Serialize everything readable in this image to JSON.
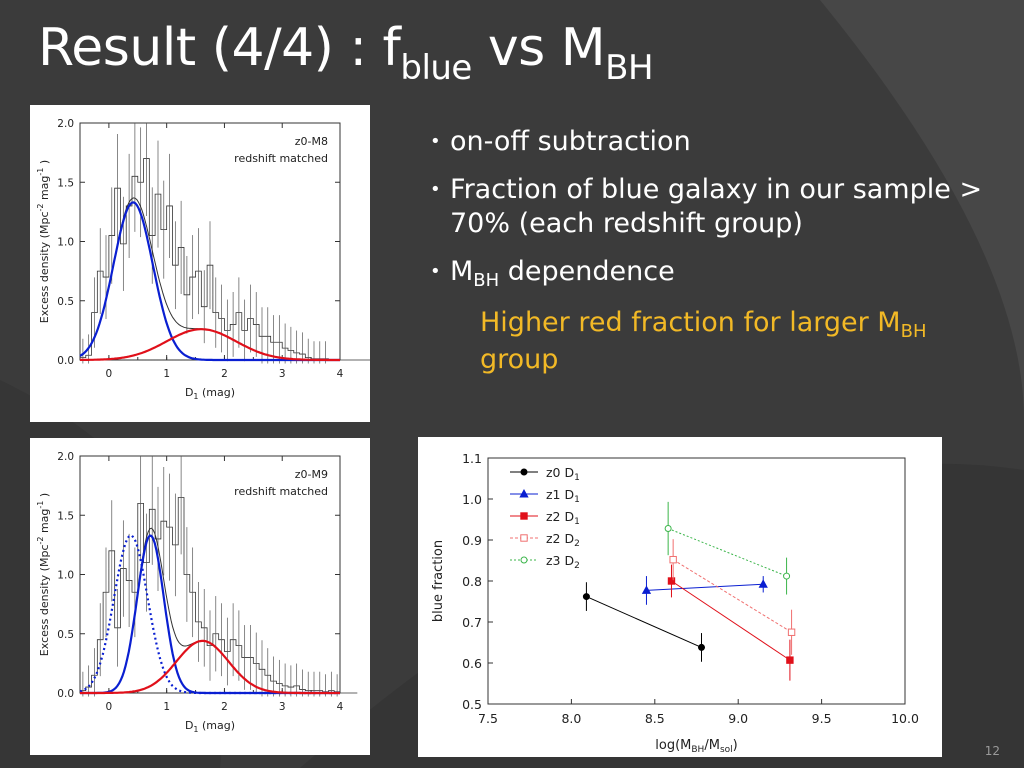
{
  "slide": {
    "title_main": "Result (4/4) : f",
    "title_sub1": "blue",
    "title_mid": " vs M",
    "title_sub2": "BH",
    "bullets": {
      "b1": "on-off subtraction",
      "b2": "Fraction of blue galaxy in our sample > 70% (each redshift group)",
      "b3_pre": "M",
      "b3_sub": "BH",
      "b3_post": " dependence",
      "note_pre": "Higher red fraction for larger M",
      "note_sub": "BH",
      "note_post": " group"
    },
    "page_number": "12"
  },
  "colors": {
    "background": "#3b3b3b",
    "note_text": "#f2b926",
    "blue": "#0a1fd1",
    "red": "#e0101a",
    "pink": "#f07070",
    "green": "#3bb54a",
    "black": "#000000"
  },
  "chart_data": [
    {
      "type": "line",
      "id": "top-left",
      "labels": [
        "z0-M8",
        "redshift matched"
      ],
      "xlabel_pre": "D",
      "xlabel_sub": "1",
      "xlabel_post": " (mag)",
      "ylabel_pre": "Excess density (Mpc",
      "ylabel_sup1": "-2",
      "ylabel_mid": " mag",
      "ylabel_sup2": "-1",
      "ylabel_post": " )",
      "xlim": [
        -0.5,
        4
      ],
      "ylim": [
        0,
        2
      ],
      "xticks": [
        0,
        1,
        2,
        3,
        4
      ],
      "yticks": [
        0.0,
        0.5,
        1.0,
        1.5,
        2.0
      ],
      "ytick_labels": [
        "0.0",
        "0.5",
        "1.0",
        "1.5",
        "2.0"
      ],
      "histogram": {
        "bin_start": -0.5,
        "bin_width": 0.1,
        "values": [
          0.02,
          0.04,
          0.4,
          0.75,
          0.7,
          1.05,
          1.45,
          0.98,
          1.3,
          1.55,
          1.5,
          1.7,
          1.05,
          1.4,
          1.1,
          1.3,
          0.8,
          0.95,
          0.55,
          0.7,
          0.75,
          0.45,
          0.8,
          0.4,
          0.35,
          0.25,
          0.3,
          0.4,
          0.25,
          0.35,
          0.3,
          0.2,
          0.2,
          0.15,
          0.15,
          0.1,
          0.08,
          0.06,
          0.05,
          0.02,
          0.01,
          0.01,
          0.01,
          0.0,
          0.0,
          0.0,
          0.0,
          0.0,
          0.0,
          0.0,
          0.0,
          0.0,
          0.0,
          0.04,
          0.0,
          0.0
        ]
      },
      "gaussians": [
        {
          "name": "blue",
          "amplitude": 1.33,
          "mean": 0.42,
          "sigma": 0.34,
          "style": "solid"
        },
        {
          "name": "red",
          "amplitude": 0.26,
          "mean": 1.6,
          "sigma": 0.6,
          "style": "solid"
        }
      ],
      "sum_line": true
    },
    {
      "type": "line",
      "id": "bottom-left",
      "labels": [
        "z0-M9",
        "redshift matched"
      ],
      "xlabel_pre": "D",
      "xlabel_sub": "1",
      "xlabel_post": " (mag)",
      "ylabel_pre": "Excess density (Mpc",
      "ylabel_sup1": "-2",
      "ylabel_mid": " mag",
      "ylabel_sup2": "-1",
      "ylabel_post": " )",
      "xlim": [
        -0.5,
        4
      ],
      "ylim": [
        0,
        2
      ],
      "xticks": [
        0,
        1,
        2,
        3,
        4
      ],
      "yticks": [
        0.0,
        0.5,
        1.0,
        1.5,
        2.0
      ],
      "ytick_labels": [
        "0.0",
        "0.5",
        "1.0",
        "1.5",
        "2.0"
      ],
      "histogram": {
        "bin_start": -0.5,
        "bin_width": 0.1,
        "values": [
          0.02,
          0.05,
          0.15,
          0.45,
          0.85,
          1.2,
          0.55,
          1.05,
          0.95,
          0.85,
          1.6,
          1.1,
          1.55,
          1.3,
          1.45,
          1.4,
          1.25,
          1.65,
          1.0,
          0.85,
          0.6,
          0.55,
          0.4,
          0.5,
          0.45,
          0.35,
          0.45,
          0.4,
          0.3,
          0.3,
          0.25,
          0.2,
          0.15,
          0.1,
          0.08,
          0.06,
          0.05,
          0.06,
          0.03,
          0.02,
          0.02,
          0.02,
          0.01,
          0.02,
          0.01,
          0.0,
          0.0,
          0.0
        ]
      },
      "gaussians": [
        {
          "name": "blue-dotted",
          "amplitude": 1.33,
          "mean": 0.38,
          "sigma": 0.29,
          "style": "dotted"
        },
        {
          "name": "blue",
          "amplitude": 1.33,
          "mean": 0.72,
          "sigma": 0.23,
          "style": "solid"
        },
        {
          "name": "red",
          "amplitude": 0.44,
          "mean": 1.62,
          "sigma": 0.45,
          "style": "solid"
        }
      ],
      "sum_line": true
    },
    {
      "type": "scatter",
      "id": "right",
      "xlabel_pre": "log(M",
      "xlabel_sub1": "BH",
      "xlabel_mid": "/M",
      "xlabel_sub2": "sol",
      "xlabel_post": ")",
      "ylabel": "blue fraction",
      "xlim": [
        7.5,
        10.0
      ],
      "ylim": [
        0.5,
        1.1
      ],
      "xticks": [
        7.5,
        8.0,
        8.5,
        9.0,
        9.5,
        10.0
      ],
      "xtick_labels": [
        "7.5",
        "8.0",
        "8.5",
        "9.0",
        "9.5",
        "10.0"
      ],
      "yticks": [
        0.5,
        0.6,
        0.7,
        0.8,
        0.9,
        1.0,
        1.1
      ],
      "ytick_labels": [
        "0.5",
        "0.6",
        "0.7",
        "0.8",
        "0.9",
        "1.0",
        "1.1"
      ],
      "legend_position": "top-left",
      "series": [
        {
          "name_pre": "z0 D",
          "name_sub": "1",
          "color": "#000000",
          "marker": "circle",
          "filled": true,
          "dash": "none",
          "points": [
            {
              "x": 8.09,
              "y": 0.762,
              "err": 0.035
            },
            {
              "x": 8.78,
              "y": 0.638,
              "err": 0.035
            }
          ]
        },
        {
          "name_pre": "z1 D",
          "name_sub": "1",
          "color": "#0a1fd1",
          "marker": "triangle",
          "filled": true,
          "dash": "none",
          "points": [
            {
              "x": 8.45,
              "y": 0.777,
              "err": 0.035
            },
            {
              "x": 9.15,
              "y": 0.792,
              "err": 0.02
            }
          ]
        },
        {
          "name_pre": "z2 D",
          "name_sub": "1",
          "color": "#e0101a",
          "marker": "square",
          "filled": true,
          "dash": "none",
          "points": [
            {
              "x": 8.6,
              "y": 0.8,
              "err": 0.04
            },
            {
              "x": 9.31,
              "y": 0.607,
              "err": 0.05
            }
          ]
        },
        {
          "name_pre": "z2 D",
          "name_sub": "2",
          "color": "#f07070",
          "marker": "square",
          "filled": false,
          "dash": "dashed",
          "points": [
            {
              "x": 8.61,
              "y": 0.852,
              "err": 0.05
            },
            {
              "x": 9.32,
              "y": 0.675,
              "err": 0.055
            }
          ]
        },
        {
          "name_pre": "z3 D",
          "name_sub": "2",
          "color": "#3bb54a",
          "marker": "circle",
          "filled": false,
          "dash": "dotted",
          "points": [
            {
              "x": 8.58,
              "y": 0.928,
              "err": 0.065
            },
            {
              "x": 9.29,
              "y": 0.812,
              "err": 0.045
            }
          ]
        }
      ]
    }
  ]
}
